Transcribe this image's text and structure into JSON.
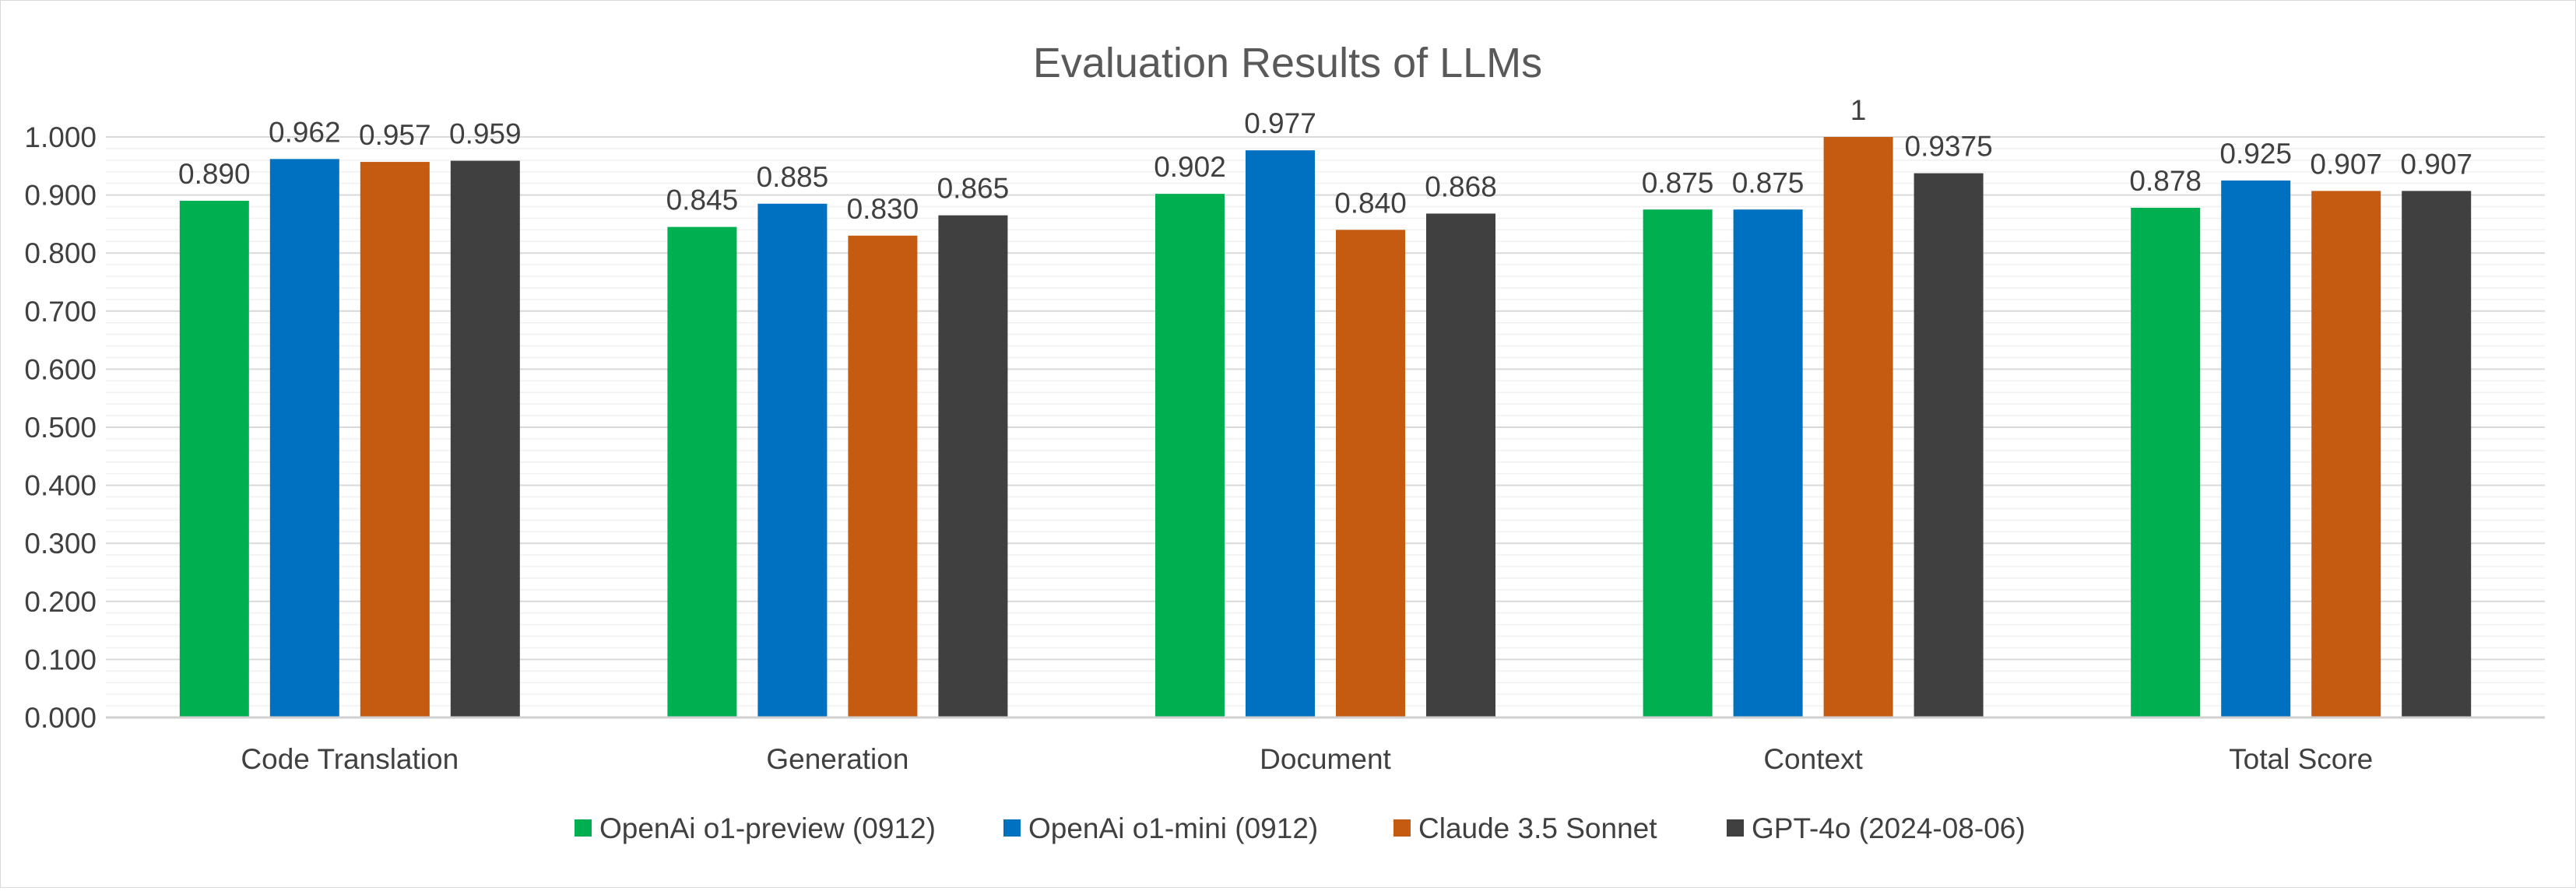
{
  "chart_data": {
    "type": "bar",
    "title": "Evaluation Results of LLMs",
    "xlabel": "",
    "ylabel": "",
    "ylim": [
      0,
      1
    ],
    "ytick_step": 0.1,
    "ytick_labels": [
      "0.000",
      "0.100",
      "0.200",
      "0.300",
      "0.400",
      "0.500",
      "0.600",
      "0.700",
      "0.800",
      "0.900",
      "1.000"
    ],
    "grid": true,
    "legend_position": "bottom",
    "categories": [
      "Code Translation",
      "Generation",
      "Document",
      "Context",
      "Total Score"
    ],
    "series": [
      {
        "name": "OpenAi o1-preview (0912)",
        "color": "#00B050",
        "values": [
          0.89,
          0.845,
          0.902,
          0.875,
          0.878
        ],
        "labels": [
          "0.890",
          "0.845",
          "0.902",
          "0.875",
          "0.878"
        ]
      },
      {
        "name": "OpenAi o1-mini (0912)",
        "color": "#0070C0",
        "values": [
          0.962,
          0.885,
          0.977,
          0.875,
          0.925
        ],
        "labels": [
          "0.962",
          "0.885",
          "0.977",
          "0.875",
          "0.925"
        ]
      },
      {
        "name": "Claude 3.5 Sonnet",
        "color": "#C55A11",
        "values": [
          0.957,
          0.83,
          0.84,
          1.0,
          0.907
        ],
        "labels": [
          "0.957",
          "0.830",
          "0.840",
          "1",
          "0.907"
        ]
      },
      {
        "name": "GPT-4o (2024-08-06)",
        "color": "#404040",
        "values": [
          0.959,
          0.865,
          0.868,
          0.9375,
          0.907
        ],
        "labels": [
          "0.959",
          "0.865",
          "0.868",
          "0.9375",
          "0.907"
        ]
      }
    ]
  }
}
